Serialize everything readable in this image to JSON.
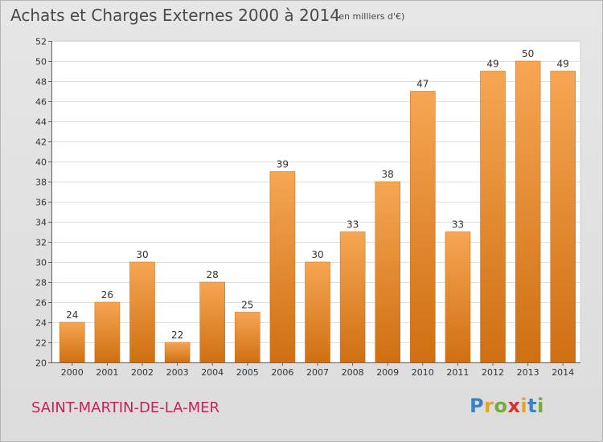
{
  "title": "Achats et Charges Externes 2000 à 2014",
  "subtitle": "(en milliers d'€)",
  "town": "SAINT-MARTIN-DE-LA-MER",
  "brand": {
    "letters": [
      "P",
      "r",
      "o",
      "x",
      "i",
      "t",
      "i"
    ],
    "colors": [
      "#3f7fc4",
      "#e8a22a",
      "#7aa83a",
      "#d9322e",
      "#e8a22a",
      "#3f7fc4",
      "#7aa83a"
    ]
  },
  "colors": {
    "bar_light": "#f6a653",
    "bar_dark": "#cf6f12",
    "title": "#4a4a4a",
    "town": "#c8225a"
  },
  "chart_data": {
    "type": "bar",
    "title": "Achats et Charges Externes 2000 à 2014",
    "subtitle": "(en milliers d'€)",
    "categories": [
      "2000",
      "2001",
      "2002",
      "2003",
      "2004",
      "2005",
      "2006",
      "2007",
      "2008",
      "2009",
      "2010",
      "2011",
      "2012",
      "2013",
      "2014"
    ],
    "values": [
      24,
      26,
      30,
      22,
      28,
      25,
      39,
      30,
      33,
      38,
      47,
      33,
      49,
      50,
      49
    ],
    "ylim": [
      20,
      52
    ],
    "yticks": [
      20,
      22,
      24,
      26,
      28,
      30,
      32,
      34,
      36,
      38,
      40,
      42,
      44,
      46,
      48,
      50,
      52
    ],
    "grid": true,
    "xlabel": "",
    "ylabel": ""
  }
}
